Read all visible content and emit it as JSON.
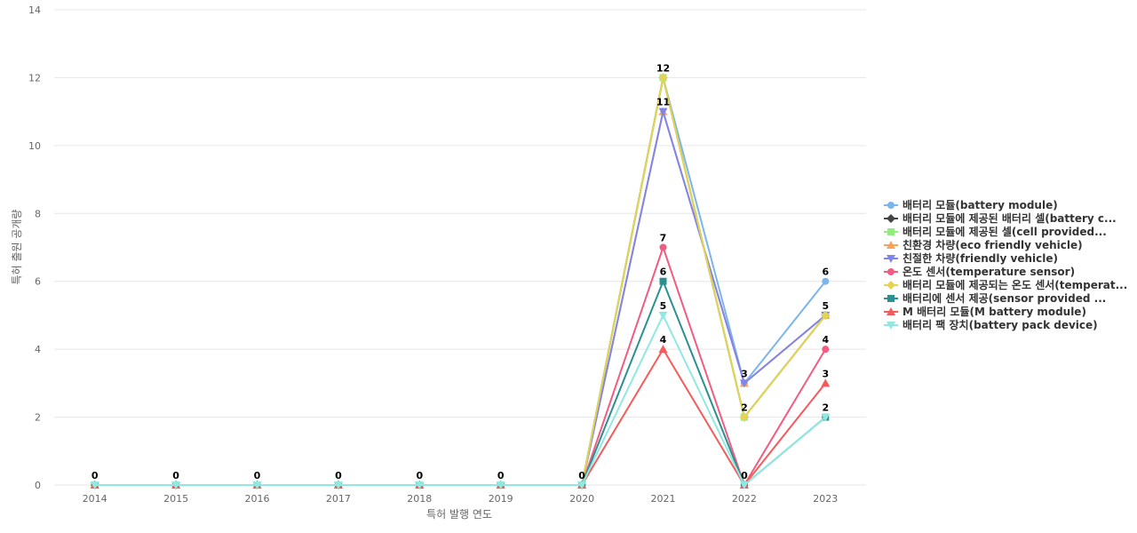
{
  "chart_data": {
    "type": "line",
    "title": "",
    "xlabel": "특허 발행 연도",
    "ylabel": "특허 출원 공개량",
    "ylim": [
      0,
      14
    ],
    "yticks": [
      0,
      2,
      4,
      6,
      8,
      10,
      12,
      14
    ],
    "grid": true,
    "legend_position": "right",
    "categories": [
      "2014",
      "2015",
      "2016",
      "2017",
      "2018",
      "2019",
      "2020",
      "2021",
      "2022",
      "2023"
    ],
    "series": [
      {
        "name": "배터리 모듈(battery module)",
        "color": "#7cb5ec",
        "marker": "circle",
        "values": [
          0,
          0,
          0,
          0,
          0,
          0,
          0,
          12,
          3,
          6
        ]
      },
      {
        "name": "배터리 모듈에 제공된 배터리 셀(battery c...",
        "color": "#434348",
        "marker": "diamond",
        "values": [
          0,
          0,
          0,
          0,
          0,
          0,
          0,
          12,
          2,
          5
        ]
      },
      {
        "name": "배터리 모듈에 제공된 셀(cell provided...",
        "color": "#90ed7d",
        "marker": "square",
        "values": [
          0,
          0,
          0,
          0,
          0,
          0,
          0,
          12,
          2,
          5
        ]
      },
      {
        "name": "친환경 차량(eco friendly vehicle)",
        "color": "#f7a35c",
        "marker": "triangle",
        "values": [
          0,
          0,
          0,
          0,
          0,
          0,
          0,
          11,
          3,
          5
        ]
      },
      {
        "name": "친절한 차량(friendly vehicle)",
        "color": "#8085e9",
        "marker": "triangle-down",
        "values": [
          0,
          0,
          0,
          0,
          0,
          0,
          0,
          11,
          3,
          5
        ]
      },
      {
        "name": "온도 센서(temperature sensor)",
        "color": "#f15c80",
        "marker": "circle",
        "values": [
          0,
          0,
          0,
          0,
          0,
          0,
          0,
          7,
          0,
          4
        ]
      },
      {
        "name": "배터리 모듈에 제공되는 온도 센서(temperat...",
        "color": "#e4d354",
        "marker": "diamond",
        "values": [
          0,
          0,
          0,
          0,
          0,
          0,
          0,
          12,
          2,
          5
        ]
      },
      {
        "name": "배터리에 센서 제공(sensor provided ...",
        "color": "#2b908f",
        "marker": "square",
        "values": [
          0,
          0,
          0,
          0,
          0,
          0,
          0,
          6,
          0,
          2
        ]
      },
      {
        "name": "M 배터리 모듈(M battery module)",
        "color": "#f45b5b",
        "marker": "triangle",
        "values": [
          0,
          0,
          0,
          0,
          0,
          0,
          0,
          4,
          0,
          3
        ]
      },
      {
        "name": "배터리 팩 장치(battery pack device)",
        "color": "#91e8e1",
        "marker": "triangle-down",
        "values": [
          0,
          0,
          0,
          0,
          0,
          0,
          0,
          5,
          0,
          2
        ]
      }
    ],
    "data_labels": [
      {
        "x": "2014",
        "y": 0,
        "text": "0"
      },
      {
        "x": "2015",
        "y": 0,
        "text": "0"
      },
      {
        "x": "2016",
        "y": 0,
        "text": "0"
      },
      {
        "x": "2017",
        "y": 0,
        "text": "0"
      },
      {
        "x": "2018",
        "y": 0,
        "text": "0"
      },
      {
        "x": "2019",
        "y": 0,
        "text": "0"
      },
      {
        "x": "2020",
        "y": 0,
        "text": "0"
      },
      {
        "x": "2021",
        "y": 12,
        "text": "12"
      },
      {
        "x": "2021",
        "y": 11,
        "text": "11"
      },
      {
        "x": "2021",
        "y": 7,
        "text": "7"
      },
      {
        "x": "2021",
        "y": 6,
        "text": "6"
      },
      {
        "x": "2021",
        "y": 5,
        "text": "5"
      },
      {
        "x": "2021",
        "y": 4,
        "text": "4"
      },
      {
        "x": "2022",
        "y": 3,
        "text": "3"
      },
      {
        "x": "2022",
        "y": 2,
        "text": "2"
      },
      {
        "x": "2022",
        "y": 0,
        "text": "0"
      },
      {
        "x": "2023",
        "y": 6,
        "text": "6"
      },
      {
        "x": "2023",
        "y": 5,
        "text": "5"
      },
      {
        "x": "2023",
        "y": 4,
        "text": "4"
      },
      {
        "x": "2023",
        "y": 3,
        "text": "3"
      },
      {
        "x": "2023",
        "y": 2,
        "text": "2"
      }
    ]
  }
}
